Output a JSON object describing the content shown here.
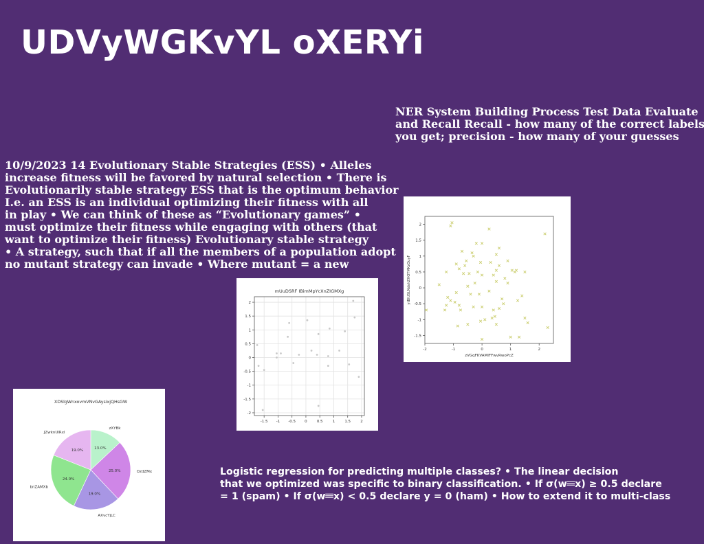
{
  "slide": {
    "title": "UDVyWGKvYL oXERYi",
    "ner_text_lines": [
      "NER System Building Process Test Data Evaluate",
      "and Recall Recall - how many of the correct labels",
      "you get; precision - how many of your guesses"
    ],
    "ess_text_lines": [
      "10/9/2023 14 Evolutionary Stable Strategies (ESS) • Alleles",
      "increase fitness will be favored by natural selection • There is",
      "Evolutionarily stable strategy ESS that is the optimum behavior",
      "I.e. an ESS is an individual optimizing their fitness with all",
      "in play • We can think of these as “Evolutionary games” •",
      "must optimize their fitness while engaging with others (that",
      "want to optimize their fitness) Evolutionary stable strategy",
      "• A strategy, such that if all the members of a population adopt",
      "no mutant strategy can invade • Where mutant =  a new"
    ],
    "logit_text_lines": [
      "Logistic regression for predicting multiple classes? • The linear decision",
      "that we optimized was specific to binary classification. • If σ(w𝄘x) ≥ 0.5 declare",
      "= 1 (spam) • If σ(w𝄘x) < 0.5 declare y = 0 (ham) • How to extend it to multi-class"
    ]
  },
  "chart_data": [
    {
      "type": "scatter",
      "title": "",
      "xlabel": "zVGqFKVAMIFFwvRwoPcZ",
      "ylabel": "ytBlUSLNdshZHOTMKzOuyF",
      "xlim": [
        -2,
        2.5
      ],
      "ylim": [
        -1.75,
        2.25
      ],
      "xticks": [
        -2,
        -1,
        0,
        1,
        2
      ],
      "yticks": [
        -1.5,
        -1.0,
        -0.5,
        0.0,
        0.5,
        1.0,
        1.5,
        2.0
      ],
      "grid": false,
      "marker": "x",
      "color": "#c9cc6a",
      "points": [
        [
          -1.05,
          2.05
        ],
        [
          -1.1,
          1.95
        ],
        [
          0.25,
          1.85
        ],
        [
          2.2,
          1.7
        ],
        [
          -0.2,
          1.4
        ],
        [
          0.0,
          1.4
        ],
        [
          0.6,
          1.25
        ],
        [
          -0.35,
          1.1
        ],
        [
          -0.3,
          1.0
        ],
        [
          0.5,
          1.05
        ],
        [
          -0.55,
          0.85
        ],
        [
          -0.05,
          0.8
        ],
        [
          0.3,
          0.8
        ],
        [
          0.6,
          0.7
        ],
        [
          -0.9,
          0.75
        ],
        [
          -0.8,
          0.6
        ],
        [
          -0.6,
          0.7
        ],
        [
          -0.15,
          0.5
        ],
        [
          0.5,
          0.55
        ],
        [
          1.05,
          0.55
        ],
        [
          1.15,
          0.5
        ],
        [
          1.5,
          0.5
        ],
        [
          -1.25,
          0.5
        ],
        [
          -0.45,
          0.45
        ],
        [
          0.0,
          0.4
        ],
        [
          0.4,
          0.4
        ],
        [
          0.8,
          0.3
        ],
        [
          -1.5,
          0.1
        ],
        [
          -0.5,
          0.05
        ],
        [
          -0.25,
          0.15
        ],
        [
          0.5,
          0.2
        ],
        [
          0.9,
          0.15
        ],
        [
          -0.9,
          -0.15
        ],
        [
          -0.4,
          -0.2
        ],
        [
          -0.1,
          -0.2
        ],
        [
          0.25,
          -0.1
        ],
        [
          0.7,
          -0.35
        ],
        [
          1.4,
          -0.25
        ],
        [
          -1.2,
          -0.3
        ],
        [
          -1.1,
          -0.4
        ],
        [
          -0.95,
          -0.45
        ],
        [
          -0.8,
          -0.55
        ],
        [
          0.0,
          -0.6
        ],
        [
          0.6,
          -0.65
        ],
        [
          0.75,
          -0.5
        ],
        [
          1.25,
          -0.4
        ],
        [
          -1.25,
          -0.55
        ],
        [
          -1.3,
          -0.7
        ],
        [
          -0.75,
          -0.7
        ],
        [
          -0.3,
          -0.6
        ],
        [
          0.45,
          -0.9
        ],
        [
          0.1,
          -1.0
        ],
        [
          -0.05,
          -1.05
        ],
        [
          0.35,
          -0.95
        ],
        [
          0.5,
          -1.15
        ],
        [
          -0.85,
          -1.2
        ],
        [
          -0.5,
          -1.15
        ],
        [
          1.5,
          -0.95
        ],
        [
          1.6,
          -1.1
        ],
        [
          2.3,
          -1.25
        ],
        [
          -1.95,
          -0.7
        ],
        [
          1.0,
          -1.55
        ],
        [
          1.3,
          -1.55
        ],
        [
          0.0,
          -1.62
        ],
        [
          0.4,
          -0.7
        ],
        [
          0.9,
          0.85
        ],
        [
          1.2,
          0.55
        ],
        [
          -0.65,
          0.45
        ],
        [
          -0.7,
          1.15
        ]
      ]
    },
    {
      "type": "scatter",
      "title": "mUuDSRF IBimMpYcXnZIGMXg",
      "xlabel": "",
      "ylabel": "",
      "xlim": [
        -1.85,
        2.1
      ],
      "ylim": [
        -2.1,
        2.2
      ],
      "xticks": [
        -1.5,
        -1.0,
        -0.5,
        0.0,
        0.5,
        1.0,
        1.5,
        2.0
      ],
      "yticks": [
        -2.0,
        -1.5,
        -1.0,
        -0.5,
        0.0,
        0.5,
        1.0,
        1.5,
        2.0
      ],
      "grid": true,
      "marker": "dot",
      "color": "#c8c8c8",
      "points": [
        [
          1.7,
          2.05
        ],
        [
          1.75,
          1.45
        ],
        [
          0.05,
          1.35
        ],
        [
          -0.6,
          1.25
        ],
        [
          0.85,
          1.05
        ],
        [
          0.45,
          0.85
        ],
        [
          -0.65,
          0.75
        ],
        [
          -1.75,
          0.45
        ],
        [
          1.4,
          0.95
        ],
        [
          0.2,
          0.25
        ],
        [
          1.2,
          0.25
        ],
        [
          -1.05,
          0.15
        ],
        [
          -0.9,
          0.15
        ],
        [
          -0.25,
          0.1
        ],
        [
          0.4,
          0.1
        ],
        [
          0.8,
          0.05
        ],
        [
          -1.05,
          0.0
        ],
        [
          -0.45,
          -0.2
        ],
        [
          -1.7,
          -0.3
        ],
        [
          0.8,
          -0.3
        ],
        [
          1.55,
          -0.25
        ],
        [
          -1.5,
          -0.45
        ],
        [
          1.9,
          -0.7
        ],
        [
          0.45,
          -1.75
        ],
        [
          -1.55,
          -1.9
        ]
      ]
    },
    {
      "type": "pie",
      "title": "XDSlgWnxovmVNvGAysixjQHsGW",
      "labels": [
        "zXYBk",
        "OzdZMx",
        "AXvcYjLC",
        "bnZAMXb",
        "JZwknUlRxl"
      ],
      "values": [
        13.0,
        25.0,
        19.0,
        24.0,
        19.0
      ],
      "value_labels": [
        "13.0%",
        "25.0%",
        "19.0%",
        "24.0%",
        "19.0%"
      ],
      "colors": [
        "#b9f2cb",
        "#cf86e7",
        "#a896e4",
        "#8fe58f",
        "#e6b6f0"
      ]
    }
  ]
}
